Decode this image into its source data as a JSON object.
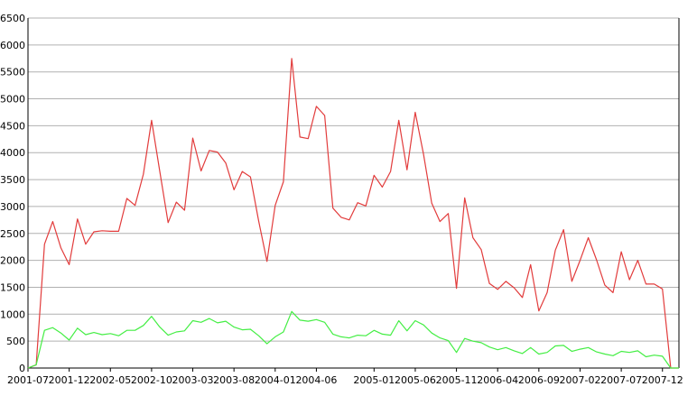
{
  "chart_data": {
    "type": "line",
    "title": "",
    "xlabel": "",
    "ylabel": "",
    "ylim": [
      0,
      6500
    ],
    "yticks": [
      0,
      500,
      1000,
      1500,
      2000,
      2500,
      3000,
      3500,
      4000,
      4500,
      5000,
      5500,
      6000,
      6500
    ],
    "grid": true,
    "legend": "none",
    "x": [
      "2001-07",
      "2001-08",
      "2001-09",
      "2001-10",
      "2001-11",
      "2001-12",
      "2002-01",
      "2002-02",
      "2002-03",
      "2002-04",
      "2002-05",
      "2002-06",
      "2002-07",
      "2002-08",
      "2002-09",
      "2002-10",
      "2002-11",
      "2002-12",
      "2003-01",
      "2003-02",
      "2003-03",
      "2003-04",
      "2003-05",
      "2003-06",
      "2003-07",
      "2003-08",
      "2003-09",
      "2003-10",
      "2003-11",
      "2003-12",
      "2004-01",
      "2004-02",
      "2004-03",
      "2004-04",
      "2004-05",
      "2004-06",
      "2004-07",
      "2004-08",
      "2004-09",
      "2004-10",
      "2004-11",
      "2004-12",
      "2005-01",
      "2005-02",
      "2005-03",
      "2005-04",
      "2005-05",
      "2005-06",
      "2005-07",
      "2005-08",
      "2005-09",
      "2005-10",
      "2005-11",
      "2005-12",
      "2006-01",
      "2006-02",
      "2006-03",
      "2006-04",
      "2006-05",
      "2006-06",
      "2006-07",
      "2006-08",
      "2006-09",
      "2006-10",
      "2006-11",
      "2006-12",
      "2007-01",
      "2007-02",
      "2007-03",
      "2007-04",
      "2007-05",
      "2007-06",
      "2007-07",
      "2007-08",
      "2007-09",
      "2007-10",
      "2007-11",
      "2007-12",
      "2008-01",
      "2008-02"
    ],
    "xtick_labels": [
      "2001-07",
      "2001-12",
      "2002-05",
      "2002-10",
      "2003-03",
      "2003-08",
      "2004-01",
      "2004-06",
      "2005-01",
      "2005-06",
      "2005-11",
      "2006-04",
      "2006-09",
      "2007-02",
      "2007-07",
      "2007-12"
    ],
    "series": [
      {
        "color": "#e23c3c",
        "values": [
          0,
          60,
          2300,
          2720,
          2230,
          1920,
          2770,
          2300,
          2530,
          2550,
          2540,
          2540,
          3150,
          3020,
          3600,
          4600,
          3650,
          2700,
          3080,
          2930,
          4270,
          3660,
          4040,
          4010,
          3810,
          3310,
          3650,
          3550,
          2730,
          1980,
          3020,
          3460,
          5750,
          4290,
          4260,
          4860,
          4690,
          2970,
          2800,
          2750,
          3070,
          3010,
          3580,
          3360,
          3650,
          4600,
          3680,
          4750,
          3970,
          3060,
          2720,
          2870,
          1480,
          3160,
          2420,
          2200,
          1570,
          1460,
          1610,
          1490,
          1310,
          1920,
          1060,
          1400,
          2190,
          2570,
          1610,
          2000,
          2420,
          2010,
          1540,
          1400,
          2160,
          1640,
          2000,
          1560,
          1560,
          1470,
          0,
          0
        ]
      },
      {
        "color": "#44ee44",
        "values": [
          0,
          60,
          700,
          750,
          650,
          520,
          740,
          620,
          660,
          620,
          640,
          600,
          700,
          700,
          790,
          960,
          760,
          610,
          670,
          690,
          880,
          850,
          920,
          840,
          870,
          760,
          710,
          720,
          600,
          450,
          580,
          670,
          1050,
          890,
          870,
          900,
          850,
          630,
          580,
          560,
          610,
          600,
          700,
          630,
          610,
          880,
          690,
          880,
          800,
          650,
          560,
          510,
          290,
          550,
          500,
          470,
          390,
          340,
          380,
          320,
          270,
          380,
          260,
          290,
          410,
          420,
          310,
          350,
          380,
          300,
          260,
          230,
          310,
          290,
          320,
          210,
          240,
          220,
          0,
          0
        ]
      }
    ]
  }
}
